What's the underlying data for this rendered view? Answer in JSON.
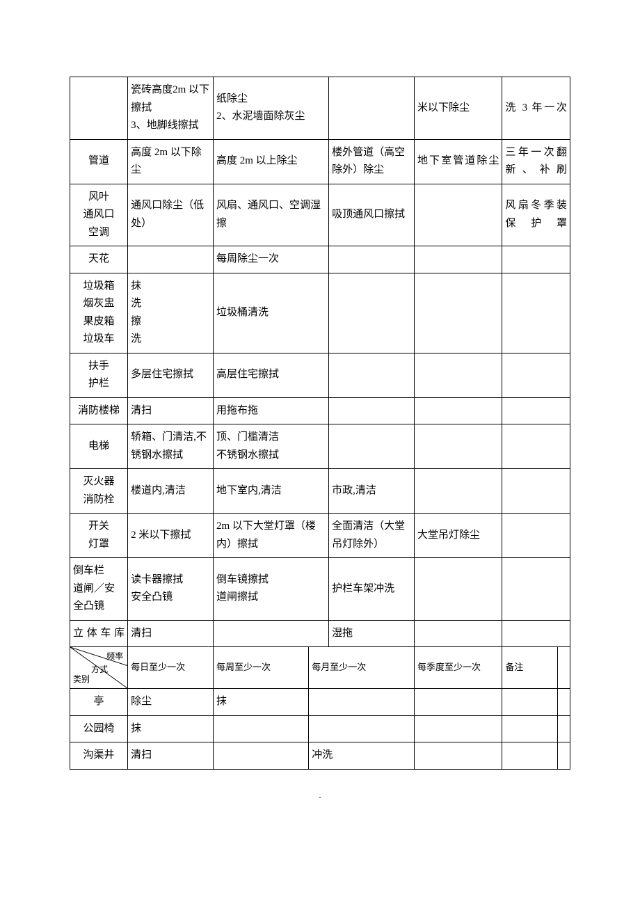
{
  "table": {
    "colors": {
      "text": "#000000",
      "border": "#000000",
      "background": "#ffffff"
    },
    "font": {
      "family": "SimSun",
      "size_pt": 11,
      "line_height": 1.7
    },
    "columns": [
      "类别",
      "每日至少一次",
      "每周至少一次",
      "每月至少一次",
      "每季度至少一次",
      "备注"
    ],
    "column_widths_pct": [
      11.5,
      17,
      23,
      17,
      17.5,
      11,
      2.5
    ],
    "rows": [
      {
        "c1": "",
        "c2": "瓷砖高度2m 以下擦拭\n3、地脚线擦拭",
        "c3": "纸除尘\n2、水泥墙面除灰尘",
        "c4": "",
        "c5": "米以下除尘",
        "c6": "洗 3  年一次"
      },
      {
        "c1": "管道",
        "c2": "高度 2m 以下除尘",
        "c3": "高度 2m 以上除尘",
        "c4": "楼外管道（高空除外）除尘",
        "c5": "地下室管道除尘",
        "c6": "三年一次翻新、补刷"
      },
      {
        "c1": "风叶\n通风口\n空调",
        "c2": "通风口除尘（低处）",
        "c3": "风扇、通风口、空调湿擦",
        "c4": "吸顶通风口擦拭",
        "c5": "",
        "c6": "风扇冬季装保护罩"
      },
      {
        "c1": "天花",
        "c2": "",
        "c3": "每周除尘一次",
        "c4": "",
        "c5": "",
        "c6": ""
      },
      {
        "c1": "垃圾箱\n烟灰盅\n果皮箱\n垃圾车",
        "c2": "抹\n洗\n擦\n洗",
        "c3": "垃圾桶清洗",
        "c4": "",
        "c5": "",
        "c6": ""
      },
      {
        "c1": "扶手\n护栏",
        "c2": "多层住宅擦拭",
        "c3": "高层住宅擦拭",
        "c4": "",
        "c5": "",
        "c6": ""
      },
      {
        "c1": "消防楼梯",
        "c2": "清扫",
        "c3": "用拖布拖",
        "c4": "",
        "c5": "",
        "c6": ""
      },
      {
        "c1": "电梯",
        "c2": "轿箱、门清洁,不锈钢水擦拭",
        "c3": "顶、门槛清洁\n不锈钢水擦拭",
        "c4": "",
        "c5": "",
        "c6": ""
      },
      {
        "c1": "灭火器\n消防栓",
        "c2": "楼道内,清洁",
        "c3": "地下室内,清洁",
        "c4": "市政,清洁",
        "c5": "",
        "c6": ""
      },
      {
        "c1": "开关\n灯罩",
        "c2": "2 米以下擦拭",
        "c3": "2m 以下大堂灯罩（楼内）擦拭",
        "c4": "全面清洁（大堂吊灯除外）",
        "c5": "大堂吊灯除尘",
        "c6": ""
      },
      {
        "c1": "倒车栏\n道闸／安全凸镜",
        "c2": "读卡器擦拭\n安全凸镜",
        "c3": "倒车镜擦拭\n道闸擦拭",
        "c4": "护栏车架冲洗",
        "c5": "",
        "c6": ""
      },
      {
        "c1": "立体车库",
        "c2": "清扫",
        "c3": "",
        "c4": "湿拖",
        "c5": "",
        "c6": ""
      }
    ],
    "header": {
      "diag_top": "频率",
      "diag_mid": "方式",
      "diag_bot": "类别",
      "h2": "每日至少一次",
      "h3": "每周至少一次",
      "h4": "每月至少一次",
      "h5": "每季度至少一次",
      "h6": "备注"
    },
    "rows2": [
      {
        "c1": "亭",
        "c2": "除尘",
        "c3": "抹",
        "c4": "",
        "c5": "",
        "c6": ""
      },
      {
        "c1": "公园椅",
        "c2": "抹",
        "c3": "",
        "c4": "",
        "c5": "",
        "c6": ""
      },
      {
        "c1": "沟渠井",
        "c2": "清扫",
        "c3": "",
        "c4": "冲洗",
        "c5": "",
        "c6": ""
      }
    ]
  },
  "footer": "."
}
